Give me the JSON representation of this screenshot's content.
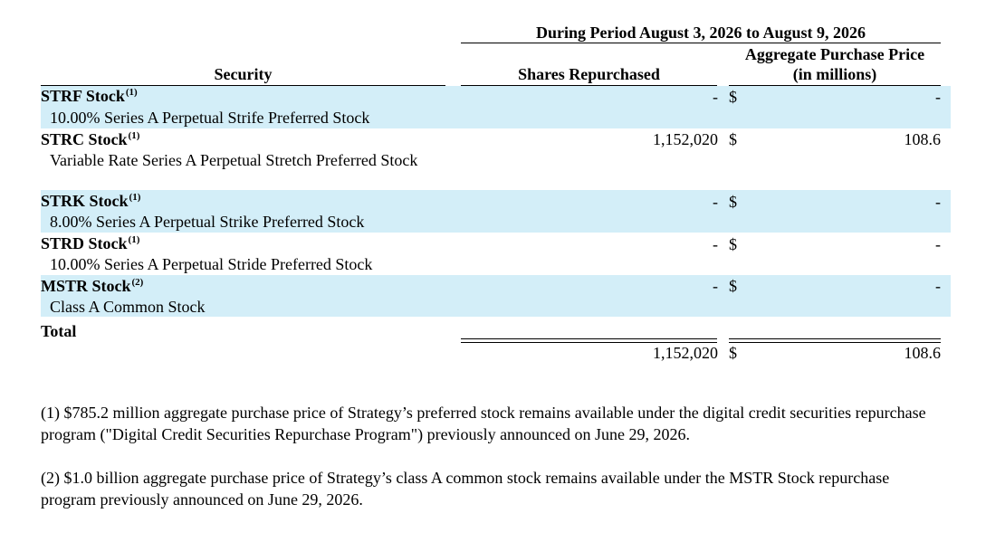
{
  "header": {
    "period": "During Period August 3, 2026 to August 9, 2026",
    "aggregate_line1": "Aggregate Purchase Price",
    "aggregate_line2": "(in millions)",
    "shares": "Shares Repurchased",
    "security": "Security"
  },
  "currency_symbol": "$",
  "rows": [
    {
      "ticker": "STRF Stock",
      "note": "(1)",
      "description": "10.00% Series A Perpetual Strife Preferred Stock",
      "shares": "-",
      "price": "-"
    },
    {
      "ticker": "STRC Stock",
      "note": "(1)",
      "description": "Variable Rate Series A Perpetual Stretch Preferred Stock",
      "shares": "1,152,020",
      "price": "108.6"
    },
    {
      "ticker": "STRK Stock",
      "note": "(1)",
      "description": "8.00% Series A Perpetual Strike Preferred Stock",
      "shares": "-",
      "price": "-"
    },
    {
      "ticker": "STRD Stock",
      "note": "(1)",
      "description": "10.00% Series A Perpetual Stride Preferred Stock",
      "shares": "-",
      "price": "-"
    },
    {
      "ticker": "MSTR Stock",
      "note": "(2)",
      "description": "Class A Common Stock",
      "shares": "-",
      "price": "-"
    }
  ],
  "total": {
    "label": "Total",
    "shares": "1,152,020",
    "price": "108.6"
  },
  "footnotes": [
    "(1) $785.2 million aggregate purchase price of Strategy’s preferred stock remains available under the digital credit securities repurchase program (\"Digital Credit Securities Repurchase Program\") previously announced on June 29, 2026.",
    "(2) $1.0 billion aggregate purchase price of Strategy’s class A common stock remains available under the MSTR Stock repurchase program previously announced on June 29, 2026."
  ]
}
